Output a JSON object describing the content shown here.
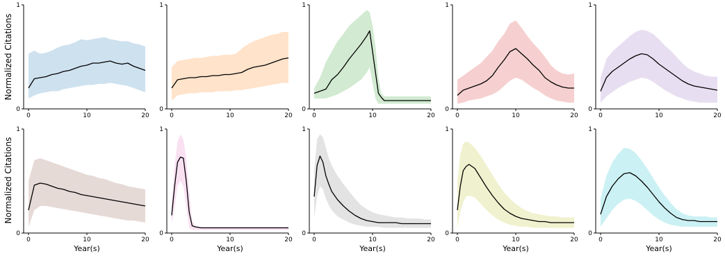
{
  "figure": {
    "ylabel": "Normalized Citations",
    "xlabel": "Year(s)"
  },
  "chart_data": [
    {
      "type": "area",
      "xlim": [
        0,
        20
      ],
      "ylim": [
        0,
        1
      ],
      "xticks": [
        0,
        10,
        20
      ],
      "yticks": [
        0,
        1
      ],
      "color": "#1f77b4",
      "x": [
        0,
        1,
        2,
        3,
        4,
        5,
        6,
        7,
        8,
        9,
        10,
        11,
        12,
        13,
        14,
        15,
        16,
        17,
        18,
        19,
        20
      ],
      "mean": [
        0.2,
        0.29,
        0.3,
        0.31,
        0.33,
        0.34,
        0.36,
        0.37,
        0.39,
        0.41,
        0.42,
        0.44,
        0.44,
        0.45,
        0.46,
        0.44,
        0.43,
        0.44,
        0.41,
        0.39,
        0.37
      ],
      "upper": [
        0.53,
        0.56,
        0.53,
        0.54,
        0.56,
        0.59,
        0.61,
        0.62,
        0.64,
        0.67,
        0.66,
        0.67,
        0.68,
        0.69,
        0.67,
        0.66,
        0.65,
        0.65,
        0.63,
        0.62,
        0.6
      ],
      "lower": [
        0.1,
        0.13,
        0.15,
        0.16,
        0.17,
        0.17,
        0.19,
        0.2,
        0.21,
        0.22,
        0.23,
        0.23,
        0.24,
        0.24,
        0.25,
        0.24,
        0.23,
        0.22,
        0.2,
        0.18,
        0.16
      ]
    },
    {
      "type": "area",
      "xlim": [
        0,
        20
      ],
      "ylim": [
        0,
        1
      ],
      "xticks": [
        0,
        10,
        20
      ],
      "yticks": [
        0,
        1
      ],
      "color": "#ff7f0e",
      "x": [
        0,
        1,
        2,
        3,
        4,
        5,
        6,
        7,
        8,
        9,
        10,
        11,
        12,
        13,
        14,
        15,
        16,
        17,
        18,
        19,
        20
      ],
      "mean": [
        0.2,
        0.28,
        0.29,
        0.3,
        0.3,
        0.31,
        0.31,
        0.32,
        0.32,
        0.33,
        0.33,
        0.34,
        0.35,
        0.38,
        0.4,
        0.41,
        0.42,
        0.44,
        0.46,
        0.48,
        0.49
      ],
      "upper": [
        0.4,
        0.46,
        0.47,
        0.48,
        0.49,
        0.49,
        0.5,
        0.51,
        0.51,
        0.52,
        0.52,
        0.53,
        0.58,
        0.62,
        0.65,
        0.67,
        0.69,
        0.71,
        0.72,
        0.74,
        0.74
      ],
      "lower": [
        0.08,
        0.13,
        0.14,
        0.15,
        0.15,
        0.16,
        0.16,
        0.16,
        0.17,
        0.17,
        0.17,
        0.18,
        0.18,
        0.19,
        0.2,
        0.21,
        0.22,
        0.23,
        0.24,
        0.25,
        0.25
      ]
    },
    {
      "type": "area",
      "xlim": [
        0,
        20
      ],
      "ylim": [
        0,
        1
      ],
      "xticks": [
        0,
        10,
        20
      ],
      "yticks": [
        0,
        1
      ],
      "color": "#2ca02c",
      "x": [
        0,
        1,
        2,
        3,
        4,
        5,
        6,
        7,
        8,
        9,
        9.5,
        10,
        10.5,
        11,
        11.5,
        12,
        13,
        14,
        15,
        16,
        17,
        18,
        19,
        20
      ],
      "mean": [
        0.15,
        0.17,
        0.19,
        0.28,
        0.33,
        0.4,
        0.48,
        0.55,
        0.62,
        0.7,
        0.75,
        0.55,
        0.35,
        0.15,
        0.11,
        0.08,
        0.08,
        0.08,
        0.08,
        0.08,
        0.08,
        0.08,
        0.08,
        0.08
      ],
      "upper": [
        0.2,
        0.3,
        0.45,
        0.55,
        0.65,
        0.72,
        0.8,
        0.85,
        0.9,
        0.95,
        0.93,
        0.8,
        0.6,
        0.3,
        0.15,
        0.12,
        0.12,
        0.12,
        0.12,
        0.12,
        0.12,
        0.12,
        0.12,
        0.12
      ],
      "lower": [
        0.1,
        0.1,
        0.1,
        0.12,
        0.14,
        0.17,
        0.2,
        0.24,
        0.28,
        0.35,
        0.4,
        0.25,
        0.1,
        0.05,
        0.05,
        0.05,
        0.05,
        0.05,
        0.05,
        0.05,
        0.05,
        0.05,
        0.05,
        0.05
      ]
    },
    {
      "type": "area",
      "xlim": [
        0,
        20
      ],
      "ylim": [
        0,
        1
      ],
      "xticks": [
        0,
        10,
        20
      ],
      "yticks": [
        0,
        1
      ],
      "color": "#d62728",
      "x": [
        0,
        1,
        2,
        3,
        4,
        5,
        6,
        7,
        8,
        9,
        10,
        11,
        12,
        13,
        14,
        15,
        16,
        17,
        18,
        19,
        20
      ],
      "mean": [
        0.13,
        0.18,
        0.2,
        0.22,
        0.24,
        0.27,
        0.32,
        0.4,
        0.47,
        0.55,
        0.58,
        0.53,
        0.48,
        0.42,
        0.37,
        0.3,
        0.26,
        0.23,
        0.21,
        0.2,
        0.2
      ],
      "upper": [
        0.28,
        0.32,
        0.36,
        0.4,
        0.44,
        0.5,
        0.56,
        0.65,
        0.72,
        0.82,
        0.85,
        0.78,
        0.7,
        0.63,
        0.57,
        0.5,
        0.42,
        0.37,
        0.34,
        0.33,
        0.34
      ],
      "lower": [
        0.05,
        0.06,
        0.08,
        0.09,
        0.1,
        0.12,
        0.14,
        0.17,
        0.22,
        0.27,
        0.3,
        0.28,
        0.24,
        0.2,
        0.17,
        0.13,
        0.1,
        0.08,
        0.07,
        0.06,
        0.06
      ]
    },
    {
      "type": "area",
      "xlim": [
        0,
        20
      ],
      "ylim": [
        0,
        1
      ],
      "xticks": [
        0,
        10,
        20
      ],
      "yticks": [
        0,
        1
      ],
      "color": "#9467bd",
      "x": [
        0,
        1,
        2,
        3,
        4,
        5,
        6,
        7,
        8,
        9,
        10,
        11,
        12,
        13,
        14,
        15,
        16,
        17,
        18,
        19,
        20
      ],
      "mean": [
        0.17,
        0.3,
        0.36,
        0.4,
        0.44,
        0.48,
        0.51,
        0.53,
        0.52,
        0.48,
        0.43,
        0.39,
        0.35,
        0.31,
        0.27,
        0.24,
        0.22,
        0.21,
        0.2,
        0.19,
        0.18
      ],
      "upper": [
        0.3,
        0.48,
        0.55,
        0.6,
        0.65,
        0.7,
        0.74,
        0.76,
        0.75,
        0.72,
        0.67,
        0.61,
        0.56,
        0.5,
        0.44,
        0.39,
        0.36,
        0.34,
        0.32,
        0.31,
        0.31
      ],
      "lower": [
        0.06,
        0.12,
        0.16,
        0.2,
        0.23,
        0.26,
        0.28,
        0.3,
        0.29,
        0.26,
        0.22,
        0.18,
        0.15,
        0.12,
        0.1,
        0.08,
        0.07,
        0.06,
        0.06,
        0.06,
        0.06
      ]
    },
    {
      "type": "area",
      "xlim": [
        0,
        20
      ],
      "ylim": [
        0,
        1
      ],
      "xticks": [
        0,
        10,
        20
      ],
      "yticks": [
        0,
        1
      ],
      "color": "#8c564b",
      "x": [
        0,
        1,
        2,
        3,
        4,
        5,
        6,
        7,
        8,
        9,
        10,
        11,
        12,
        13,
        14,
        15,
        16,
        17,
        18,
        19,
        20
      ],
      "mean": [
        0.22,
        0.46,
        0.48,
        0.47,
        0.45,
        0.43,
        0.42,
        0.4,
        0.39,
        0.37,
        0.36,
        0.35,
        0.34,
        0.33,
        0.32,
        0.31,
        0.3,
        0.29,
        0.28,
        0.27,
        0.26
      ],
      "upper": [
        0.5,
        0.7,
        0.72,
        0.7,
        0.68,
        0.66,
        0.64,
        0.62,
        0.6,
        0.58,
        0.56,
        0.55,
        0.53,
        0.52,
        0.5,
        0.48,
        0.47,
        0.45,
        0.44,
        0.43,
        0.42
      ],
      "lower": [
        0.06,
        0.22,
        0.26,
        0.26,
        0.25,
        0.24,
        0.23,
        0.22,
        0.21,
        0.2,
        0.19,
        0.18,
        0.17,
        0.16,
        0.15,
        0.14,
        0.13,
        0.12,
        0.12,
        0.11,
        0.1
      ]
    },
    {
      "type": "area",
      "xlim": [
        0,
        20
      ],
      "ylim": [
        0,
        1
      ],
      "xticks": [
        0,
        10,
        20
      ],
      "yticks": [
        0,
        1
      ],
      "color": "#e377c2",
      "x": [
        0,
        0.5,
        1,
        1.5,
        2,
        2.5,
        3,
        3.5,
        4,
        5,
        6,
        7,
        8,
        9,
        10,
        11,
        12,
        13,
        14,
        15,
        16,
        17,
        18,
        19,
        20
      ],
      "mean": [
        0.17,
        0.45,
        0.68,
        0.73,
        0.72,
        0.5,
        0.2,
        0.07,
        0.06,
        0.05,
        0.05,
        0.05,
        0.05,
        0.05,
        0.05,
        0.05,
        0.05,
        0.05,
        0.05,
        0.05,
        0.05,
        0.05,
        0.05,
        0.05,
        0.05
      ],
      "upper": [
        0.3,
        0.65,
        0.88,
        0.95,
        0.9,
        0.72,
        0.4,
        0.12,
        0.07,
        0.06,
        0.06,
        0.06,
        0.06,
        0.06,
        0.06,
        0.06,
        0.06,
        0.06,
        0.06,
        0.06,
        0.06,
        0.06,
        0.06,
        0.06,
        0.06
      ],
      "lower": [
        0.08,
        0.25,
        0.45,
        0.5,
        0.45,
        0.25,
        0.05,
        0.03,
        0.03,
        0.03,
        0.03,
        0.03,
        0.03,
        0.03,
        0.03,
        0.03,
        0.03,
        0.03,
        0.03,
        0.03,
        0.03,
        0.03,
        0.03,
        0.03,
        0.03
      ]
    },
    {
      "type": "area",
      "xlim": [
        0,
        20
      ],
      "ylim": [
        0,
        1
      ],
      "xticks": [
        0,
        10,
        20
      ],
      "yticks": [
        0,
        1
      ],
      "color": "#7f7f7f",
      "x": [
        0,
        0.5,
        1,
        1.5,
        2,
        2.5,
        3,
        4,
        5,
        6,
        7,
        8,
        9,
        10,
        11,
        12,
        13,
        14,
        15,
        16,
        17,
        18,
        19,
        20
      ],
      "mean": [
        0.35,
        0.65,
        0.74,
        0.68,
        0.55,
        0.47,
        0.4,
        0.32,
        0.26,
        0.21,
        0.17,
        0.14,
        0.12,
        0.11,
        0.1,
        0.1,
        0.1,
        0.1,
        0.09,
        0.09,
        0.09,
        0.09,
        0.09,
        0.09
      ],
      "upper": [
        0.6,
        0.9,
        0.95,
        0.92,
        0.82,
        0.72,
        0.65,
        0.55,
        0.47,
        0.4,
        0.33,
        0.27,
        0.23,
        0.2,
        0.18,
        0.17,
        0.16,
        0.15,
        0.15,
        0.14,
        0.14,
        0.14,
        0.13,
        0.13
      ],
      "lower": [
        0.15,
        0.35,
        0.45,
        0.42,
        0.33,
        0.27,
        0.22,
        0.16,
        0.13,
        0.1,
        0.08,
        0.07,
        0.06,
        0.06,
        0.06,
        0.05,
        0.05,
        0.05,
        0.05,
        0.05,
        0.05,
        0.05,
        0.05,
        0.05
      ]
    },
    {
      "type": "area",
      "xlim": [
        0,
        20
      ],
      "ylim": [
        0,
        1
      ],
      "xticks": [
        0,
        10,
        20
      ],
      "yticks": [
        0,
        1
      ],
      "color": "#bcbd22",
      "x": [
        0,
        0.5,
        1,
        1.5,
        2,
        3,
        4,
        5,
        6,
        7,
        8,
        9,
        10,
        11,
        12,
        13,
        14,
        15,
        16,
        17,
        18,
        19,
        20
      ],
      "mean": [
        0.22,
        0.45,
        0.6,
        0.64,
        0.66,
        0.62,
        0.53,
        0.44,
        0.36,
        0.29,
        0.23,
        0.19,
        0.16,
        0.14,
        0.13,
        0.12,
        0.11,
        0.11,
        0.1,
        0.1,
        0.1,
        0.1,
        0.1
      ],
      "upper": [
        0.5,
        0.75,
        0.86,
        0.88,
        0.87,
        0.82,
        0.74,
        0.65,
        0.56,
        0.47,
        0.39,
        0.33,
        0.28,
        0.24,
        0.21,
        0.19,
        0.18,
        0.17,
        0.16,
        0.16,
        0.15,
        0.15,
        0.15
      ],
      "lower": [
        0.05,
        0.2,
        0.3,
        0.35,
        0.36,
        0.34,
        0.28,
        0.22,
        0.17,
        0.13,
        0.1,
        0.08,
        0.07,
        0.06,
        0.06,
        0.05,
        0.05,
        0.05,
        0.05,
        0.05,
        0.05,
        0.05,
        0.05
      ]
    },
    {
      "type": "area",
      "xlim": [
        0,
        20
      ],
      "ylim": [
        0,
        1
      ],
      "xticks": [
        0,
        10,
        20
      ],
      "yticks": [
        0,
        1
      ],
      "color": "#17becf",
      "x": [
        0,
        1,
        2,
        3,
        4,
        5,
        6,
        7,
        8,
        9,
        10,
        11,
        12,
        13,
        14,
        15,
        16,
        17,
        18,
        19,
        20
      ],
      "mean": [
        0.18,
        0.35,
        0.45,
        0.52,
        0.57,
        0.58,
        0.55,
        0.5,
        0.44,
        0.37,
        0.3,
        0.24,
        0.19,
        0.15,
        0.13,
        0.12,
        0.12,
        0.11,
        0.11,
        0.11,
        0.11
      ],
      "upper": [
        0.33,
        0.55,
        0.68,
        0.76,
        0.82,
        0.81,
        0.77,
        0.7,
        0.62,
        0.53,
        0.44,
        0.36,
        0.29,
        0.23,
        0.19,
        0.17,
        0.16,
        0.16,
        0.16,
        0.15,
        0.15
      ],
      "lower": [
        0.06,
        0.14,
        0.22,
        0.28,
        0.32,
        0.33,
        0.31,
        0.27,
        0.22,
        0.17,
        0.13,
        0.1,
        0.08,
        0.07,
        0.06,
        0.06,
        0.06,
        0.06,
        0.06,
        0.06,
        0.06
      ]
    }
  ]
}
